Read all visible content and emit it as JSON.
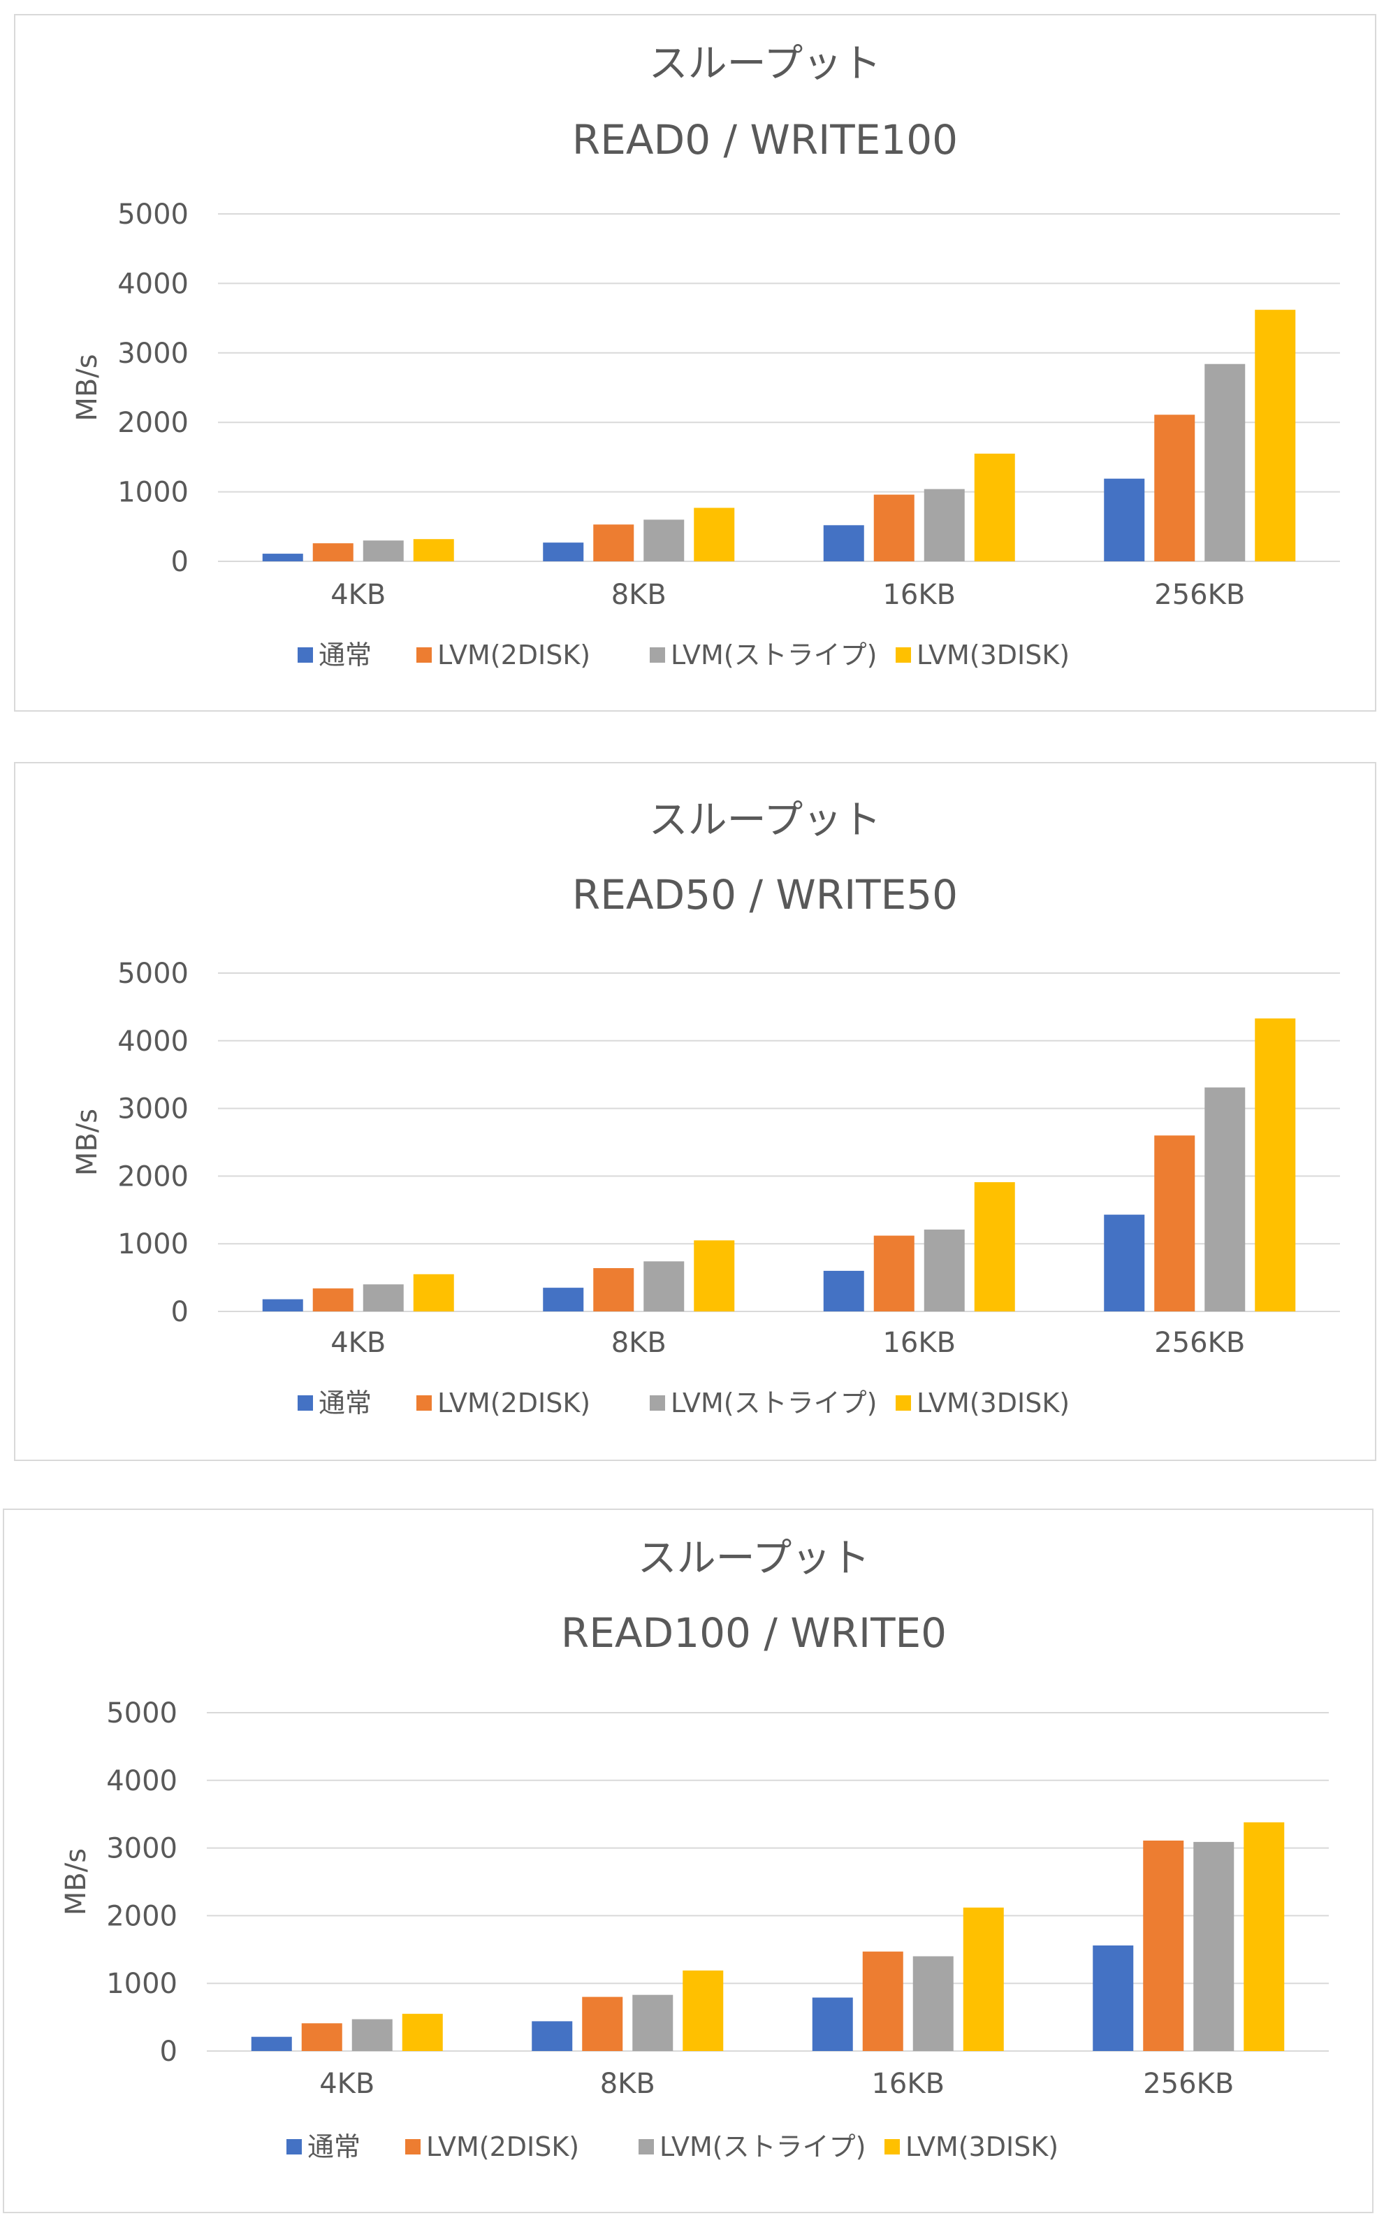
{
  "chart_data": [
    {
      "type": "bar",
      "title": "スループット",
      "subtitle": "READ0 / WRITE100",
      "ylabel": "MB/s",
      "xlabel": "",
      "ylim": [
        0,
        5000
      ],
      "yticks": [
        0,
        1000,
        2000,
        3000,
        4000,
        5000
      ],
      "grid": true,
      "legend": "bottom",
      "categories": [
        "4KB",
        "8KB",
        "16KB",
        "256KB"
      ],
      "series": [
        {
          "name": "通常",
          "color": "#4472C4",
          "values": [
            110,
            270,
            520,
            1190
          ]
        },
        {
          "name": "LVM(2DISK)",
          "color": "#ED7D31",
          "values": [
            260,
            530,
            960,
            2110
          ]
        },
        {
          "name": "LVM(ストライプ)",
          "color": "#A5A5A5",
          "values": [
            300,
            600,
            1040,
            2840
          ]
        },
        {
          "name": "LVM(3DISK)",
          "color": "#FFC000",
          "values": [
            320,
            770,
            1550,
            3620
          ]
        }
      ]
    },
    {
      "type": "bar",
      "title": "スループット",
      "subtitle": "READ50 / WRITE50",
      "ylabel": "MB/s",
      "xlabel": "",
      "ylim": [
        0,
        5000
      ],
      "yticks": [
        0,
        1000,
        2000,
        3000,
        4000,
        5000
      ],
      "grid": true,
      "legend": "bottom",
      "categories": [
        "4KB",
        "8KB",
        "16KB",
        "256KB"
      ],
      "series": [
        {
          "name": "通常",
          "color": "#4472C4",
          "values": [
            180,
            350,
            600,
            1430
          ]
        },
        {
          "name": "LVM(2DISK)",
          "color": "#ED7D31",
          "values": [
            340,
            640,
            1120,
            2600
          ]
        },
        {
          "name": "LVM(ストライプ)",
          "color": "#A5A5A5",
          "values": [
            400,
            740,
            1210,
            3310
          ]
        },
        {
          "name": "LVM(3DISK)",
          "color": "#FFC000",
          "values": [
            550,
            1050,
            1910,
            4330
          ]
        }
      ]
    },
    {
      "type": "bar",
      "title": "スループット",
      "subtitle": "READ100 / WRITE0",
      "ylabel": "MB/s",
      "xlabel": "",
      "ylim": [
        0,
        5000
      ],
      "yticks": [
        0,
        1000,
        2000,
        3000,
        4000,
        5000
      ],
      "grid": true,
      "legend": "bottom",
      "categories": [
        "4KB",
        "8KB",
        "16KB",
        "256KB"
      ],
      "series": [
        {
          "name": "通常",
          "color": "#4472C4",
          "values": [
            210,
            440,
            790,
            1560
          ]
        },
        {
          "name": "LVM(2DISK)",
          "color": "#ED7D31",
          "values": [
            410,
            800,
            1470,
            3110
          ]
        },
        {
          "name": "LVM(ストライプ)",
          "color": "#A5A5A5",
          "values": [
            470,
            830,
            1400,
            3090
          ]
        },
        {
          "name": "LVM(3DISK)",
          "color": "#FFC000",
          "values": [
            550,
            1190,
            2120,
            3380
          ]
        }
      ]
    }
  ]
}
